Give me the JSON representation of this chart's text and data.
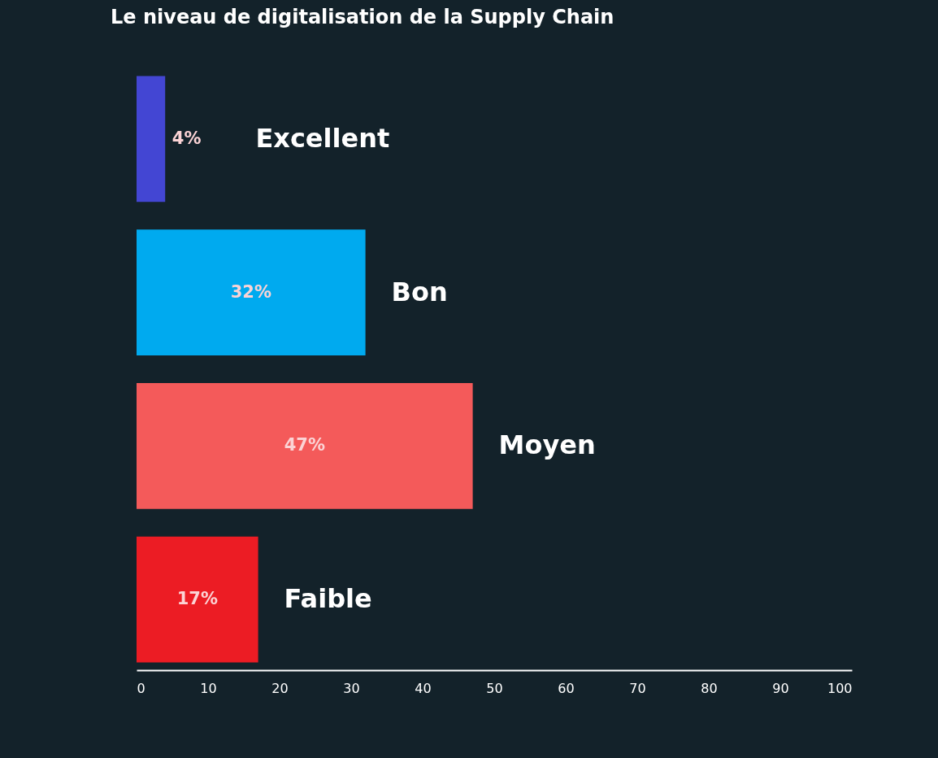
{
  "chart_data": {
    "type": "bar",
    "orientation": "horizontal",
    "title": "Le niveau de digitalisation de la Supply Chain",
    "categories": [
      "Excellent",
      "Bon",
      "Moyen",
      "Faible"
    ],
    "values": [
      4,
      32,
      47,
      17
    ],
    "colors": [
      "#4346d3",
      "#00aaef",
      "#f45a5a",
      "#ec1c24"
    ],
    "value_labels": [
      "4%",
      "32%",
      "47%",
      "17%"
    ],
    "xlim": [
      0,
      100
    ],
    "xticks": [
      0,
      10,
      20,
      30,
      40,
      50,
      60,
      70,
      80,
      90,
      100
    ],
    "grid": false,
    "tick_labels": "x"
  }
}
